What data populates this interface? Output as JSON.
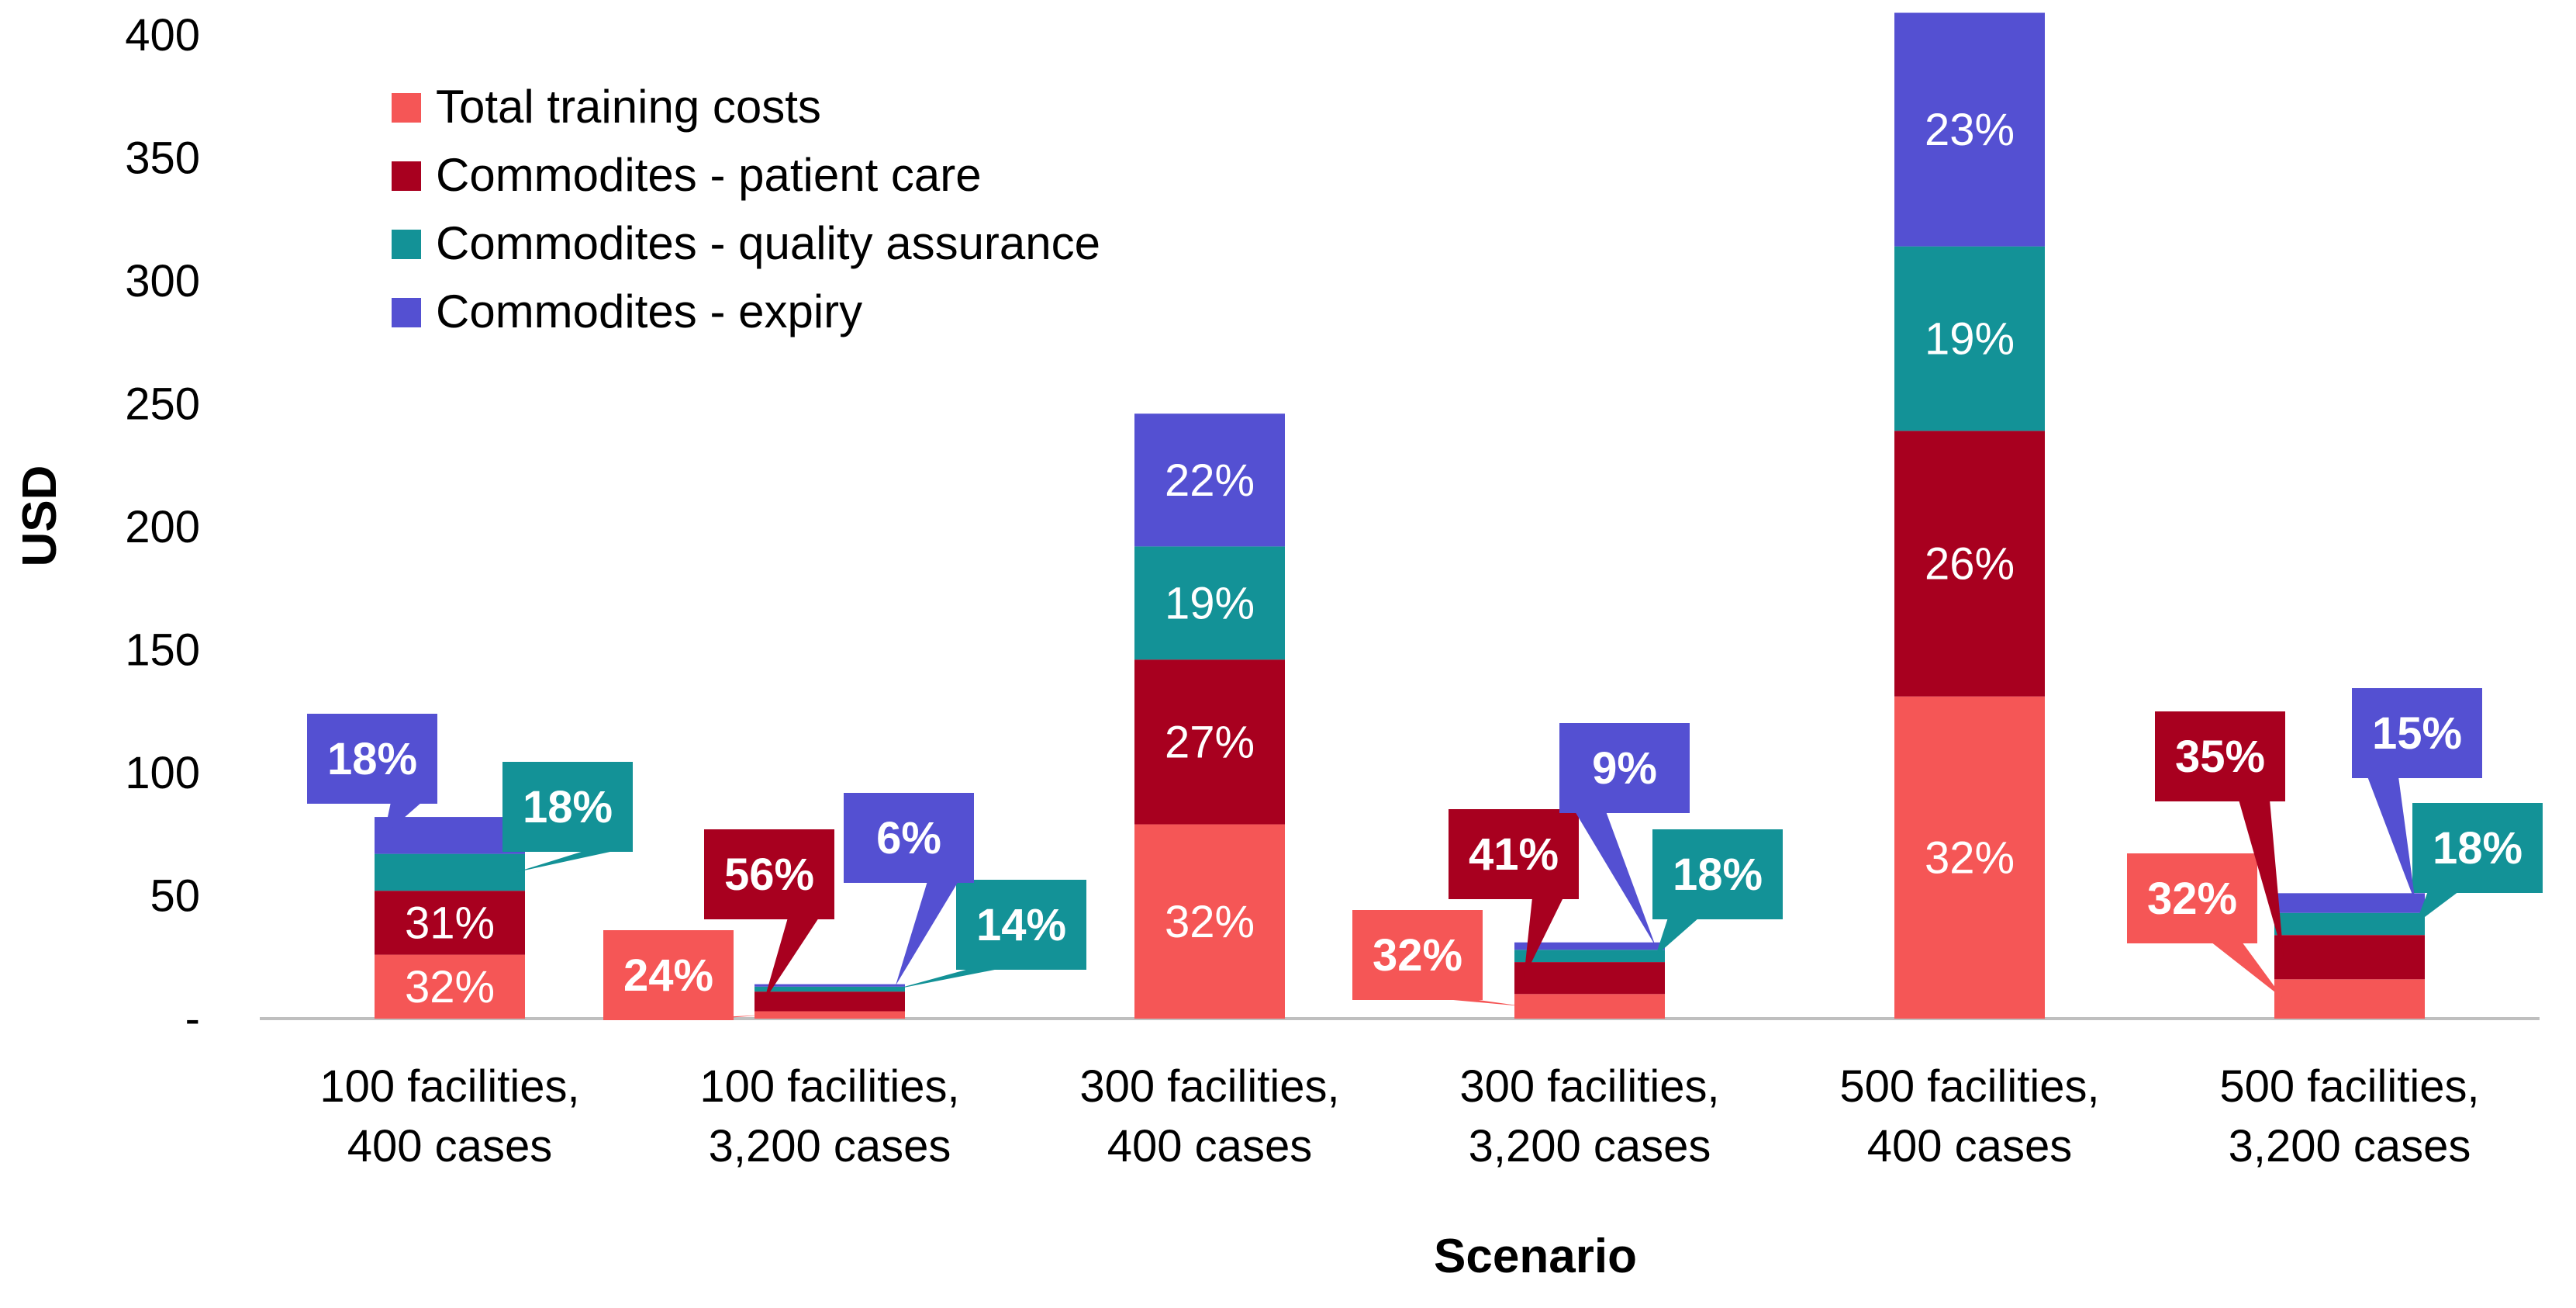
{
  "chart_data": {
    "type": "bar",
    "stacked": true,
    "title": "",
    "xlabel": "Scenario",
    "ylabel": "USD",
    "ylim": [
      0,
      400
    ],
    "yticks": [
      0,
      50,
      100,
      150,
      200,
      250,
      300,
      350,
      400
    ],
    "ytick_labels": [
      "-",
      "50",
      "100",
      "150",
      "200",
      "250",
      "300",
      "350",
      "400"
    ],
    "legend_position": "top-left",
    "categories": [
      [
        "100 facilities,",
        "400 cases"
      ],
      [
        "100 facilities,",
        "3,200 cases"
      ],
      [
        "300 facilities,",
        "400 cases"
      ],
      [
        "300 facilities,",
        "3,200 cases"
      ],
      [
        "500 facilities,",
        "400 cases"
      ],
      [
        "500 facilities,",
        "3,200 cases"
      ]
    ],
    "series": [
      {
        "name": "Total training costs",
        "color": "#f55656",
        "values": [
          26,
          3,
          79,
          10,
          131,
          16
        ],
        "labels": [
          "32%",
          "24%",
          "32%",
          "32%",
          "32%",
          "32%"
        ],
        "callout": [
          false,
          true,
          false,
          true,
          false,
          true
        ]
      },
      {
        "name": "Commodites - patient care",
        "color": "#a8001f",
        "values": [
          26,
          8,
          67,
          13,
          108,
          18
        ],
        "labels": [
          "31%",
          "56%",
          "27%",
          "41%",
          "26%",
          "35%"
        ],
        "callout": [
          false,
          true,
          false,
          true,
          false,
          true
        ]
      },
      {
        "name": "Commodites - quality assurance",
        "color": "#139297",
        "values": [
          15,
          2,
          46,
          5,
          75,
          9
        ],
        "labels": [
          "18%",
          "14%",
          "19%",
          "18%",
          "19%",
          "18%"
        ],
        "callout": [
          true,
          true,
          false,
          true,
          false,
          true
        ]
      },
      {
        "name": "Commodites - expiry",
        "color": "#5450d2",
        "values": [
          15,
          1,
          54,
          3,
          95,
          8
        ],
        "labels": [
          "18%",
          "6%",
          "22%",
          "9%",
          "23%",
          "15%"
        ],
        "callout": [
          true,
          true,
          false,
          true,
          false,
          true
        ]
      }
    ]
  }
}
